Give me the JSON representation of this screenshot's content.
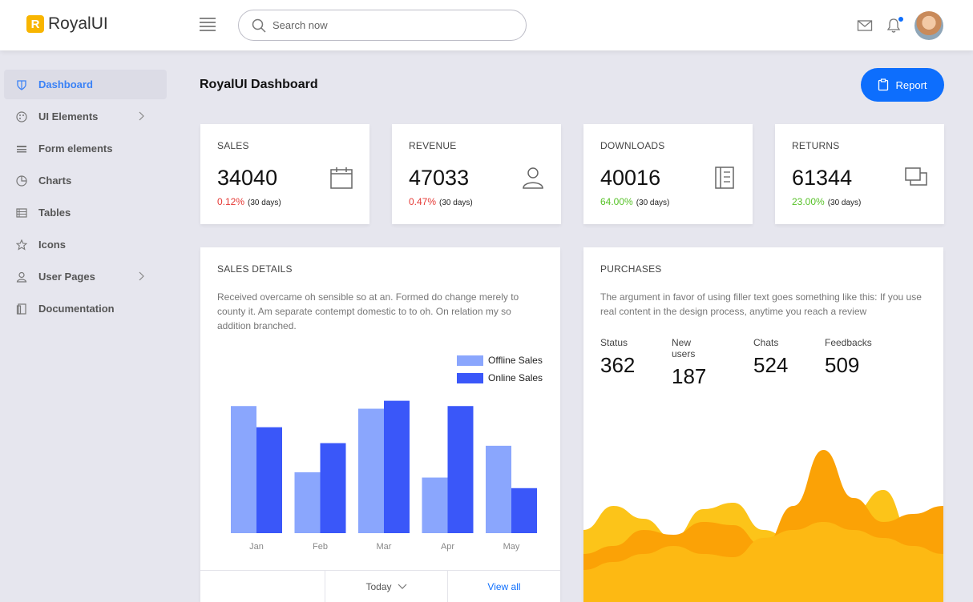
{
  "brand": {
    "logo_letter": "R",
    "name": "RoyalUI"
  },
  "search": {
    "placeholder": "Search now"
  },
  "header_icons": [
    "menu-icon",
    "mail-icon",
    "bell-icon",
    "avatar"
  ],
  "sidebar": {
    "items": [
      {
        "label": "Dashboard",
        "icon": "shield-icon",
        "active": true,
        "has_submenu": false
      },
      {
        "label": "UI Elements",
        "icon": "palette-icon",
        "active": false,
        "has_submenu": true
      },
      {
        "label": "Form elements",
        "icon": "form-icon",
        "active": false,
        "has_submenu": false
      },
      {
        "label": "Charts",
        "icon": "pie-chart-icon",
        "active": false,
        "has_submenu": false
      },
      {
        "label": "Tables",
        "icon": "table-icon",
        "active": false,
        "has_submenu": false
      },
      {
        "label": "Icons",
        "icon": "star-icon",
        "active": false,
        "has_submenu": false
      },
      {
        "label": "User Pages",
        "icon": "user-icon",
        "active": false,
        "has_submenu": true
      },
      {
        "label": "Documentation",
        "icon": "document-icon",
        "active": false,
        "has_submenu": false
      }
    ]
  },
  "main": {
    "title": "RoyalUI Dashboard",
    "report_label": "Report",
    "stats": [
      {
        "title": "SALES",
        "value": "34040",
        "change": "0.12%",
        "trend": "down",
        "period": "(30 days)",
        "icon": "calendar-icon"
      },
      {
        "title": "REVENUE",
        "value": "47033",
        "change": "0.47%",
        "trend": "down",
        "period": "(30 days)",
        "icon": "user-icon"
      },
      {
        "title": "DOWNLOADS",
        "value": "40016",
        "change": "64.00%",
        "trend": "up",
        "period": "(30 days)",
        "icon": "notebook-icon"
      },
      {
        "title": "RETURNS",
        "value": "61344",
        "change": "23.00%",
        "trend": "up",
        "period": "(30 days)",
        "icon": "copy-icon"
      }
    ],
    "sales_details": {
      "title": "SALES DETAILS",
      "description": "Received overcame oh sensible so at an. Formed do change merely to county it. Am separate contempt domestic to to oh. On relation my so addition branched.",
      "footer": {
        "period_label": "Today",
        "view_all_label": "View all"
      }
    },
    "purchases": {
      "title": "PURCHASES",
      "description": "The argument in favor of using filler text goes something like this: If you use real content in the design process, anytime you reach a review",
      "stats": [
        {
          "label": "Status",
          "value": "362"
        },
        {
          "label": "New users",
          "value": "187"
        },
        {
          "label": "Chats",
          "value": "524"
        },
        {
          "label": "Feedbacks",
          "value": "509"
        }
      ]
    }
  },
  "colors": {
    "accent": "#0d6efd",
    "active_nav": "#3b82f6",
    "down": "#e53935",
    "up": "#57c228",
    "offline_sales": "#8aa6fd",
    "online_sales": "#3a57f9",
    "area_light": "#fcc419",
    "area_mid": "#fdb913",
    "area_dark": "#fba206"
  },
  "chart_data": [
    {
      "type": "bar",
      "categories": [
        "Jan",
        "Feb",
        "Mar",
        "Apr",
        "May"
      ],
      "series": [
        {
          "name": "Offline Sales",
          "values": [
            480,
            230,
            470,
            210,
            330
          ]
        },
        {
          "name": "Online Sales",
          "values": [
            400,
            340,
            500,
            480,
            170
          ]
        }
      ],
      "ylim": [
        0,
        520
      ],
      "legend": "top-right",
      "grid": false
    },
    {
      "type": "area",
      "x": [
        0,
        1,
        2,
        3,
        4,
        5,
        6,
        7,
        8,
        9,
        10,
        11,
        12
      ],
      "series": [
        {
          "values": [
            45,
            60,
            52,
            40,
            58,
            62,
            45,
            38,
            50,
            56,
            70,
            40,
            35
          ]
        },
        {
          "values": [
            30,
            35,
            45,
            42,
            50,
            48,
            35,
            60,
            95,
            65,
            50,
            55,
            60
          ]
        },
        {
          "values": [
            20,
            25,
            30,
            35,
            30,
            28,
            40,
            45,
            50,
            45,
            40,
            35,
            30
          ]
        }
      ],
      "grid": false
    }
  ]
}
